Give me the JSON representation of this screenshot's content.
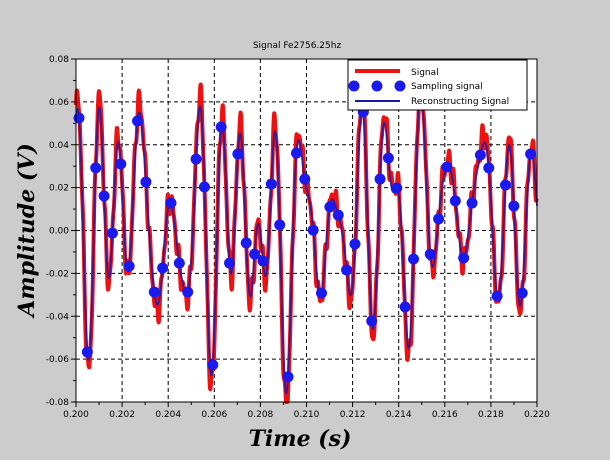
{
  "chart_data": {
    "type": "line",
    "title": "Signal Fe2756.25hz",
    "xlabel": "Time (s)",
    "ylabel": "Amplitude (V)",
    "xlim": [
      0.2,
      0.22
    ],
    "ylim": [
      -0.08,
      0.08
    ],
    "x_ticks": [
      "0.200",
      "0.202",
      "0.204",
      "0.206",
      "0.208",
      "0.210",
      "0.212",
      "0.214",
      "0.216",
      "0.218",
      "0.220"
    ],
    "y_ticks": [
      "-0.08",
      "-0.06",
      "-0.04",
      "-0.02",
      "0.00",
      "0.02",
      "0.04",
      "0.06",
      "0.08"
    ],
    "grid": true,
    "legend_position": "top-right",
    "sampling_rate_hz": 2756.25,
    "first_sample_time": 0.20013,
    "legend": [
      "Signal",
      "Sampling signal",
      "Reconstructing Signal"
    ],
    "colors": {
      "signal": "#ee1111",
      "samples": "#1a1aee",
      "reconstruction": "#1a1aaa",
      "background": "#cccccc",
      "plot": "#ffffff"
    },
    "samples": [
      0.0525,
      -0.0567,
      0.0292,
      0.0161,
      -0.0012,
      0.031,
      -0.0166,
      0.0511,
      0.0226,
      -0.0287,
      -0.0175,
      0.0128,
      -0.0152,
      -0.0287,
      0.0333,
      0.0203,
      -0.0627,
      0.0483,
      -0.0152,
      0.0357,
      -0.0058,
      -0.011,
      -0.0142,
      0.0217,
      0.0026,
      -0.0683,
      0.0361,
      0.024,
      0.0002,
      -0.0292,
      0.011,
      0.0072,
      -0.0184,
      -0.0063,
      0.0553,
      -0.0422,
      0.024,
      0.0338,
      0.0198,
      -0.0357,
      -0.0133,
      0.062,
      -0.011,
      0.0054,
      0.0296,
      0.0138,
      -0.0128,
      0.0128,
      0.0352,
      0.0292,
      -0.0306,
      0.0212,
      0.0114,
      -0.0292,
      0.0357
    ]
  }
}
